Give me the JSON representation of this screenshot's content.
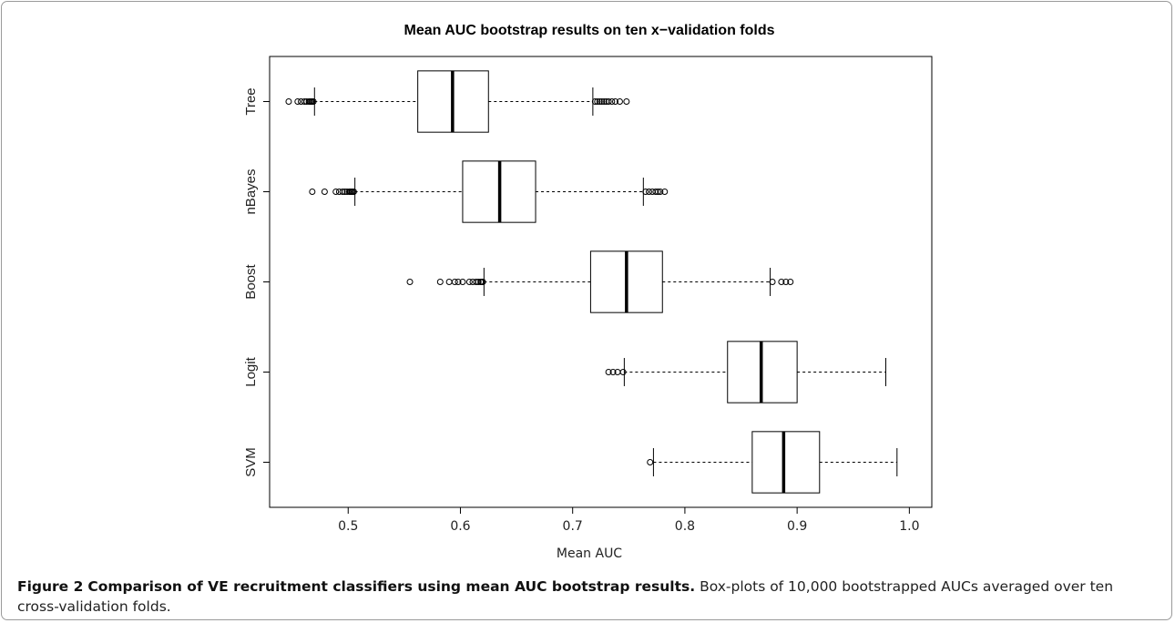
{
  "chart_data": {
    "type": "boxplot",
    "orientation": "horizontal",
    "title": "Mean AUC bootstrap results on ten x−validation folds",
    "xlabel": "Mean AUC",
    "ylabel": "",
    "xlim": [
      0.43,
      1.02
    ],
    "x_ticks": [
      0.5,
      0.6,
      0.7,
      0.8,
      0.9,
      1.0
    ],
    "x_tick_labels": [
      "0.5",
      "0.6",
      "0.7",
      "0.8",
      "0.9",
      "1.0"
    ],
    "grid": false,
    "series": [
      {
        "name": "Tree",
        "q1": 0.562,
        "median": 0.593,
        "q3": 0.625,
        "whisker_low": 0.47,
        "whisker_high": 0.718,
        "outliers": [
          0.447,
          0.455,
          0.458,
          0.461,
          0.463,
          0.465,
          0.466,
          0.467,
          0.468,
          0.469,
          0.72,
          0.722,
          0.724,
          0.726,
          0.728,
          0.73,
          0.732,
          0.735,
          0.738,
          0.742,
          0.748
        ]
      },
      {
        "name": "nBayes",
        "q1": 0.602,
        "median": 0.635,
        "q3": 0.667,
        "whisker_low": 0.506,
        "whisker_high": 0.763,
        "outliers": [
          0.468,
          0.479,
          0.489,
          0.492,
          0.495,
          0.497,
          0.499,
          0.501,
          0.502,
          0.503,
          0.504,
          0.505,
          0.765,
          0.768,
          0.771,
          0.774,
          0.776,
          0.778,
          0.782
        ]
      },
      {
        "name": "Boost",
        "q1": 0.716,
        "median": 0.748,
        "q3": 0.78,
        "whisker_low": 0.621,
        "whisker_high": 0.876,
        "outliers": [
          0.555,
          0.582,
          0.59,
          0.595,
          0.598,
          0.602,
          0.608,
          0.611,
          0.614,
          0.616,
          0.618,
          0.619,
          0.62,
          0.878,
          0.886,
          0.89,
          0.894
        ]
      },
      {
        "name": "Logit",
        "q1": 0.838,
        "median": 0.868,
        "q3": 0.9,
        "whisker_low": 0.746,
        "whisker_high": 0.979,
        "outliers": [
          0.732,
          0.736,
          0.74,
          0.745
        ]
      },
      {
        "name": "SVM",
        "q1": 0.86,
        "median": 0.888,
        "q3": 0.92,
        "whisker_low": 0.772,
        "whisker_high": 0.989,
        "outliers": [
          0.769
        ]
      }
    ]
  },
  "caption": {
    "label": "Figure 2",
    "bold_title": "Comparison of VE recruitment classifiers using mean AUC bootstrap results.",
    "text": "Box-plots of 10,000 bootstrapped AUCs averaged over ten cross-validation folds."
  }
}
